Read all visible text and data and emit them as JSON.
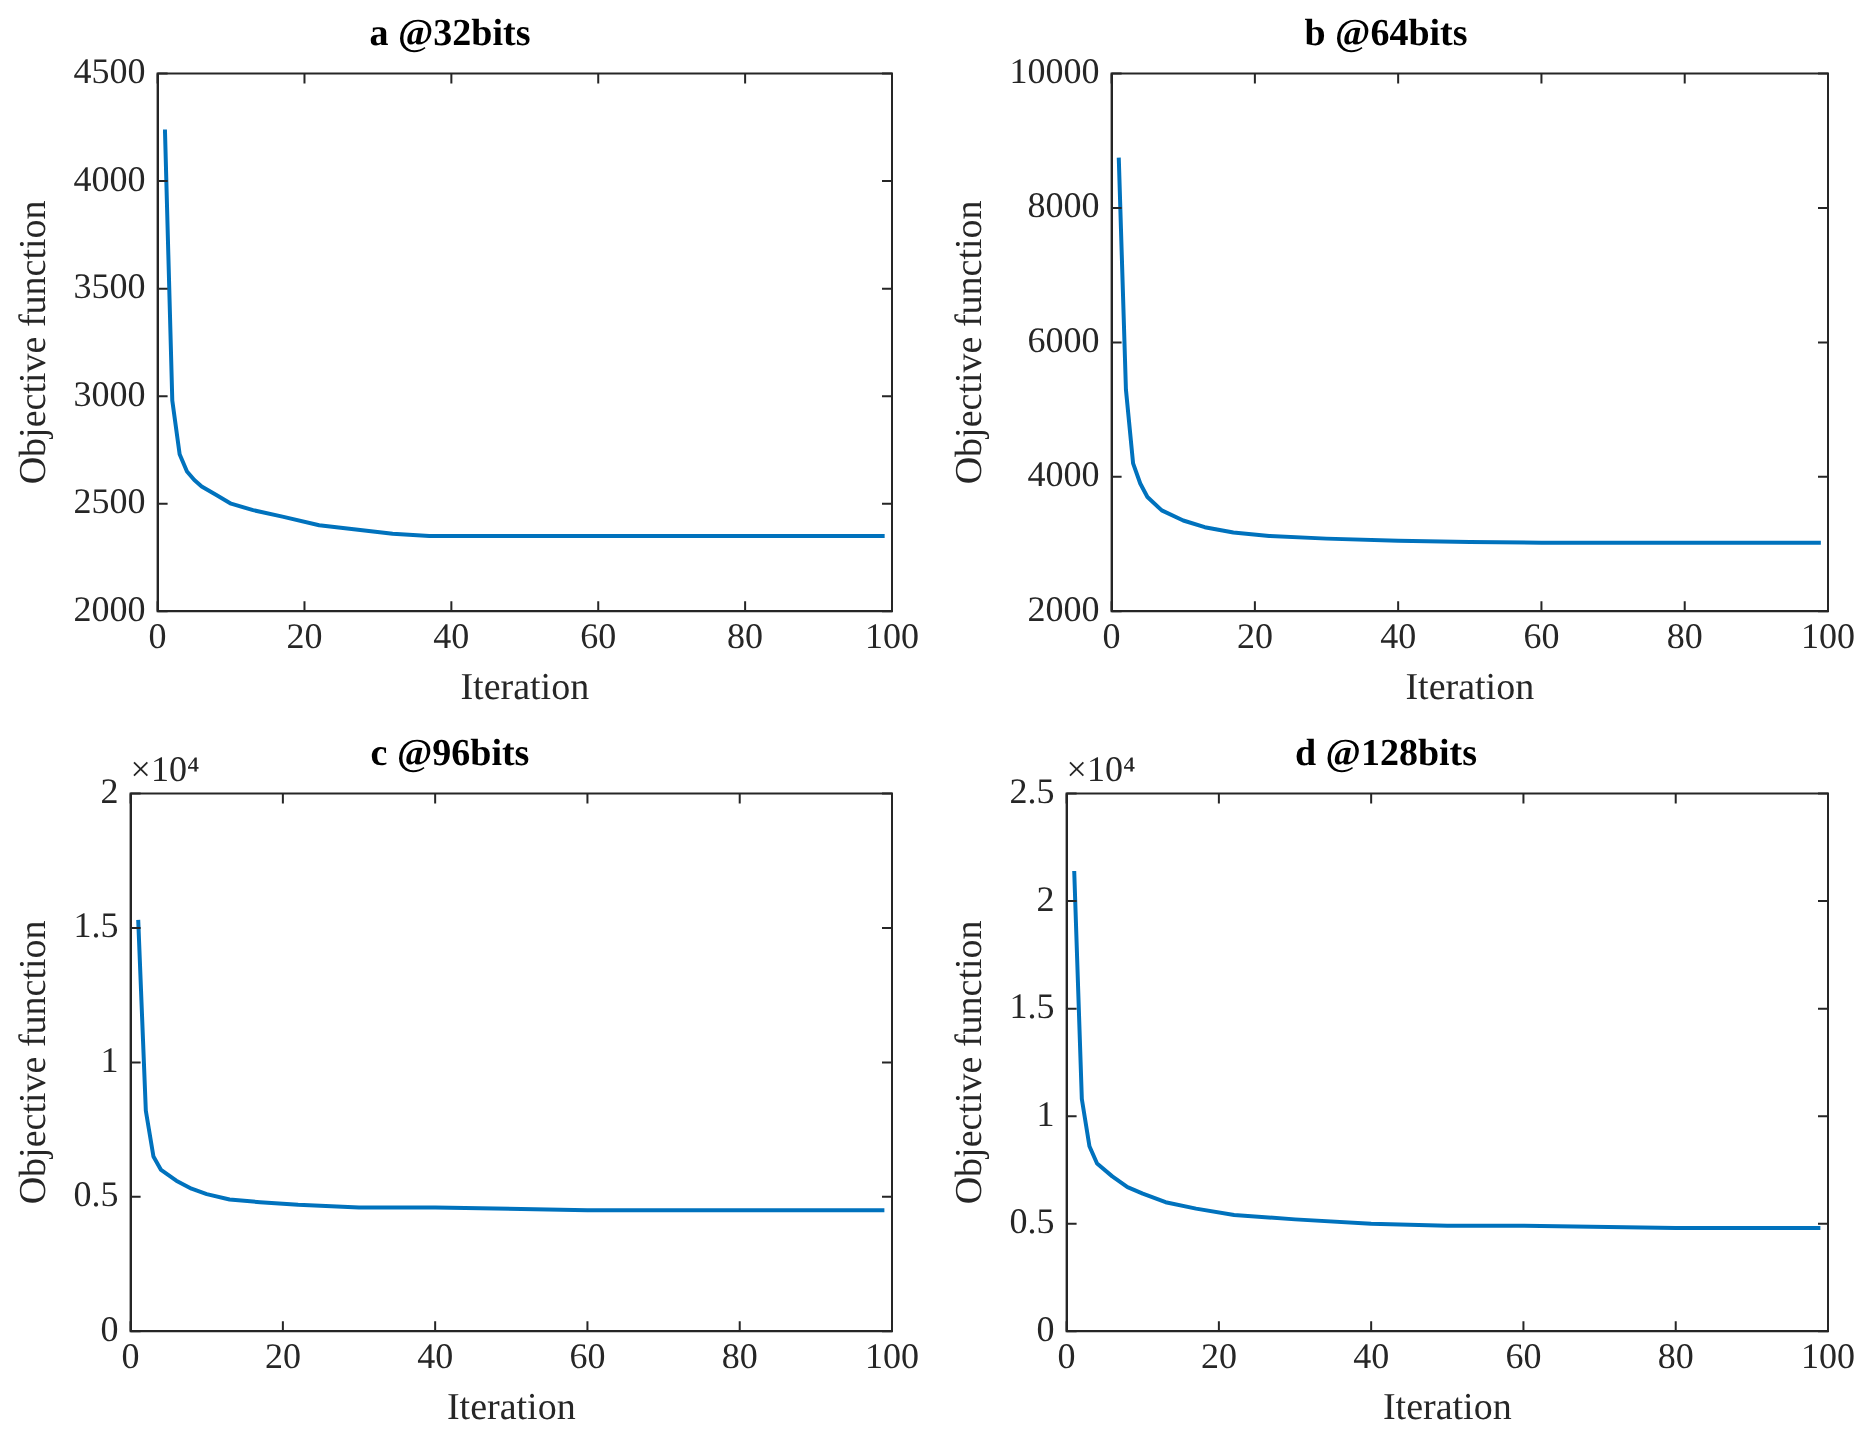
{
  "chart_data": [
    {
      "type": "line",
      "title": "a @32bits",
      "xlabel": "Iteration",
      "ylabel": "Objective function",
      "xlim": [
        0,
        100
      ],
      "xticks": [
        0,
        20,
        40,
        60,
        80,
        100
      ],
      "ylim": [
        2000,
        4500
      ],
      "yticks": [
        2000,
        2500,
        3000,
        3500,
        4000,
        4500
      ],
      "grid": false,
      "legend": false,
      "series": [
        {
          "color": "#0072bd",
          "x": [
            1,
            2,
            3,
            4,
            5,
            6,
            8,
            10,
            13,
            17,
            22,
            27,
            32,
            37,
            45,
            60,
            80,
            99
          ],
          "values": [
            4240,
            2980,
            2730,
            2650,
            2610,
            2580,
            2540,
            2500,
            2470,
            2440,
            2400,
            2380,
            2360,
            2350,
            2350,
            2350,
            2350,
            2350
          ]
        }
      ]
    },
    {
      "type": "line",
      "title": "b @64bits",
      "xlabel": "Iteration",
      "ylabel": "Objective function",
      "xlim": [
        0,
        100
      ],
      "xticks": [
        0,
        20,
        40,
        60,
        80,
        100
      ],
      "ylim": [
        2000,
        10000
      ],
      "yticks": [
        2000,
        4000,
        6000,
        8000,
        10000
      ],
      "grid": false,
      "legend": false,
      "series": [
        {
          "color": "#0072bd",
          "x": [
            1,
            2,
            3,
            4,
            5,
            7,
            10,
            13,
            17,
            22,
            30,
            40,
            50,
            60,
            80,
            99
          ],
          "values": [
            8750,
            5300,
            4200,
            3900,
            3700,
            3500,
            3350,
            3250,
            3170,
            3120,
            3080,
            3050,
            3030,
            3020,
            3020,
            3020
          ]
        }
      ]
    },
    {
      "type": "line",
      "title": "c @96bits",
      "xlabel": "Iteration",
      "ylabel": "Objective function",
      "annotations": [
        "×10⁴"
      ],
      "xlim": [
        0,
        100
      ],
      "xticks": [
        0,
        20,
        40,
        60,
        80,
        100
      ],
      "ylim": [
        0,
        2
      ],
      "yticks": [
        0,
        0.5,
        1,
        1.5,
        2
      ],
      "grid": false,
      "legend": false,
      "series": [
        {
          "color": "#0072bd",
          "x": [
            1,
            2,
            3,
            4,
            6,
            8,
            10,
            13,
            17,
            22,
            30,
            40,
            60,
            99
          ],
          "values": [
            1.53,
            0.82,
            0.65,
            0.6,
            0.56,
            0.53,
            0.51,
            0.49,
            0.48,
            0.47,
            0.46,
            0.46,
            0.45,
            0.45
          ]
        }
      ]
    },
    {
      "type": "line",
      "title": "d @128bits",
      "xlabel": "Iteration",
      "ylabel": "Objective function",
      "annotations": [
        "×10⁴"
      ],
      "xlim": [
        0,
        100
      ],
      "xticks": [
        0,
        20,
        40,
        60,
        80,
        100
      ],
      "ylim": [
        0,
        2.5
      ],
      "yticks": [
        0,
        0.5,
        1,
        1.5,
        2,
        2.5
      ],
      "grid": false,
      "legend": false,
      "series": [
        {
          "color": "#0072bd",
          "x": [
            1,
            2,
            3,
            4,
            6,
            8,
            10,
            13,
            17,
            22,
            30,
            40,
            50,
            60,
            80,
            99
          ],
          "values": [
            2.14,
            1.08,
            0.86,
            0.78,
            0.72,
            0.67,
            0.64,
            0.6,
            0.57,
            0.54,
            0.52,
            0.5,
            0.49,
            0.49,
            0.48,
            0.48
          ]
        }
      ]
    }
  ]
}
